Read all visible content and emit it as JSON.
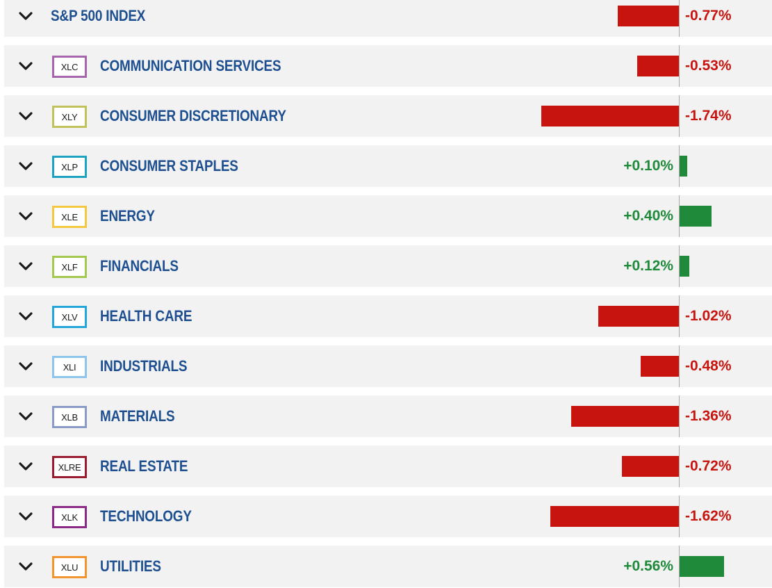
{
  "colors": {
    "negative": "#c8140f",
    "positive": "#1f8a3a",
    "name_text": "#1d4f91",
    "row_background": "#f2f2f2",
    "chevron": "#1a1a1a"
  },
  "icons": {
    "expand": "chevron-down-icon"
  },
  "rows": [
    {
      "is_index": true,
      "ticker": "",
      "ticker_color": "",
      "name": "S&P 500 INDEX",
      "change": -0.77,
      "change_label": "-0.77%"
    },
    {
      "is_index": false,
      "ticker": "XLC",
      "ticker_color": "#a666ad",
      "name": "COMMUNICATION SERVICES",
      "change": -0.53,
      "change_label": "-0.53%"
    },
    {
      "is_index": false,
      "ticker": "XLY",
      "ticker_color": "#c2c25a",
      "name": "CONSUMER DISCRETIONARY",
      "change": -1.74,
      "change_label": "-1.74%"
    },
    {
      "is_index": false,
      "ticker": "XLP",
      "ticker_color": "#1da3c2",
      "name": "CONSUMER STAPLES",
      "change": 0.1,
      "change_label": "+0.10%"
    },
    {
      "is_index": false,
      "ticker": "XLE",
      "ticker_color": "#f5c842",
      "name": "ENERGY",
      "change": 0.4,
      "change_label": "+0.40%"
    },
    {
      "is_index": false,
      "ticker": "XLF",
      "ticker_color": "#a3c94f",
      "name": "FINANCIALS",
      "change": 0.12,
      "change_label": "+0.12%"
    },
    {
      "is_index": false,
      "ticker": "XLV",
      "ticker_color": "#23a6dc",
      "name": "HEALTH CARE",
      "change": -1.02,
      "change_label": "-1.02%"
    },
    {
      "is_index": false,
      "ticker": "XLI",
      "ticker_color": "#8ec5ea",
      "name": "INDUSTRIALS",
      "change": -0.48,
      "change_label": "-0.48%"
    },
    {
      "is_index": false,
      "ticker": "XLB",
      "ticker_color": "#8b9bc7",
      "name": "MATERIALS",
      "change": -1.36,
      "change_label": "-1.36%"
    },
    {
      "is_index": false,
      "ticker": "XLRE",
      "ticker_color": "#9b1b30",
      "name": "REAL ESTATE",
      "change": -0.72,
      "change_label": "-0.72%"
    },
    {
      "is_index": false,
      "ticker": "XLK",
      "ticker_color": "#8a2a86",
      "name": "TECHNOLOGY",
      "change": -1.62,
      "change_label": "-1.62%"
    },
    {
      "is_index": false,
      "ticker": "XLU",
      "ticker_color": "#f2952f",
      "name": "UTILITIES",
      "change": 0.56,
      "change_label": "+0.56%"
    }
  ]
}
